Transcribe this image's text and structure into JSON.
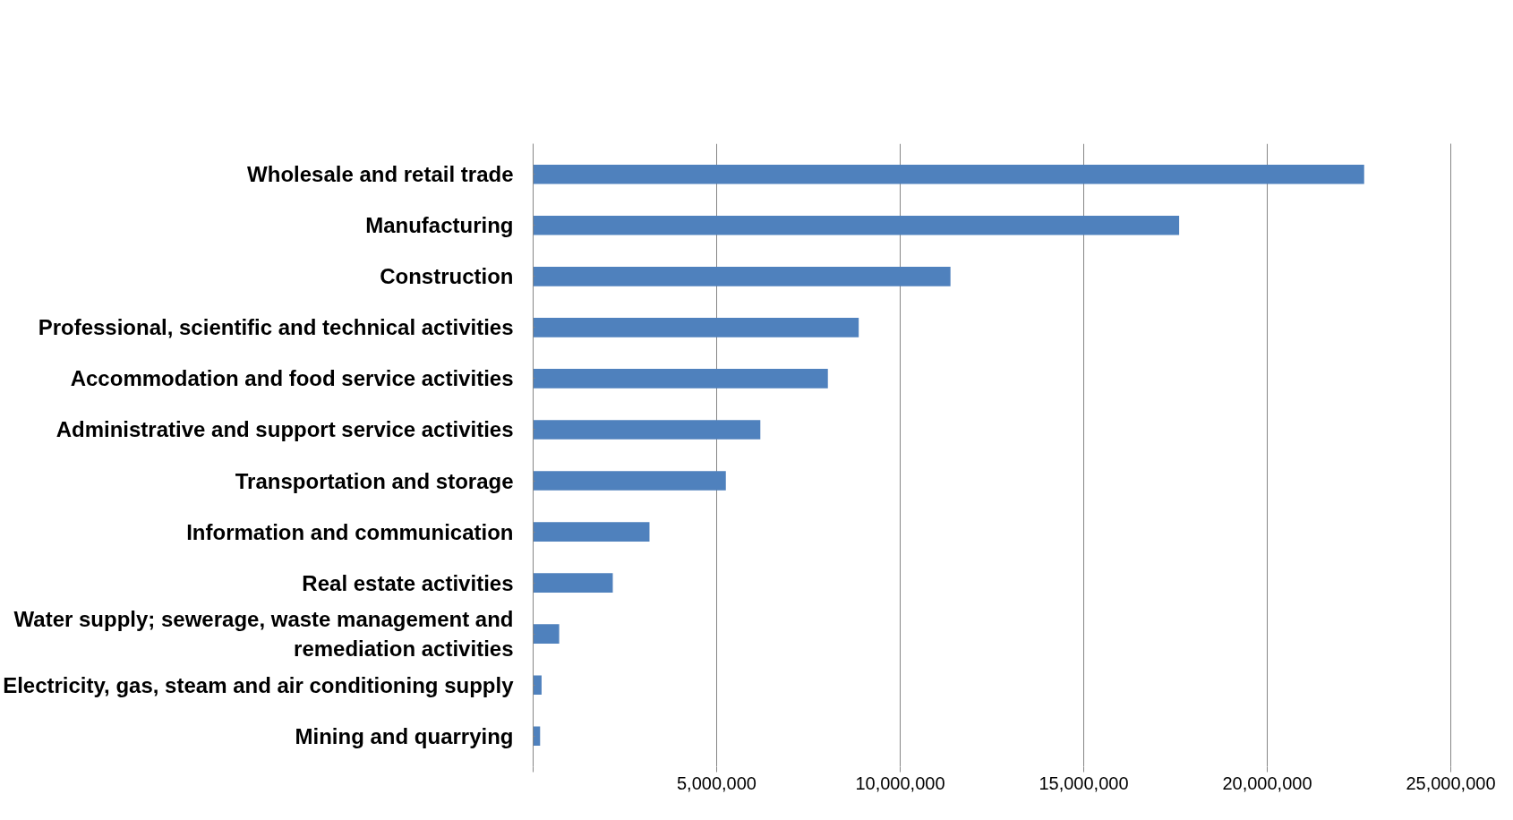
{
  "chart_data": {
    "type": "bar",
    "orientation": "horizontal",
    "categories": [
      "Wholesale and retail trade",
      "Manufacturing",
      "Construction",
      "Professional, scientific and technical activities",
      "Accommodation and food service activities",
      "Administrative and support service activities",
      "Transportation and storage",
      "Information and communication",
      "Real estate activities",
      "Water supply; sewerage, waste management and\nremediation activities",
      "Electricity, gas, steam and air conditioning supply",
      "Mining and quarrying"
    ],
    "values": [
      22640000,
      17600000,
      11370000,
      8870000,
      8030000,
      6190000,
      5250000,
      3170000,
      2170000,
      710000,
      230000,
      190000
    ],
    "color": "#4f81bd",
    "xlim": [
      0,
      25000000
    ],
    "xticks": [
      {
        "value": 0,
        "label": null
      },
      {
        "value": 5000000,
        "label": "5,000,000"
      },
      {
        "value": 10000000,
        "label": "10,000,000"
      },
      {
        "value": 15000000,
        "label": "15,000,000"
      },
      {
        "value": 20000000,
        "label": "20,000,000"
      },
      {
        "value": 25000000,
        "label": "25,000,000"
      }
    ],
    "grid": "x"
  }
}
